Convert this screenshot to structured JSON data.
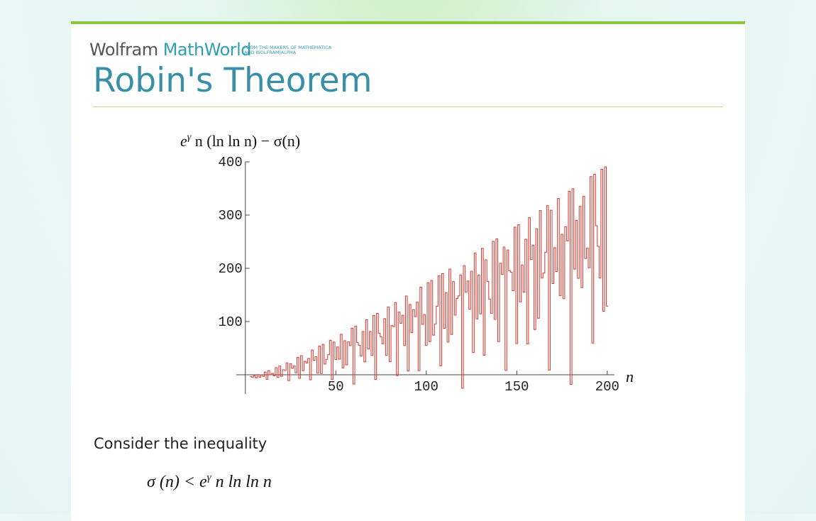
{
  "header": {
    "logo": {
      "wolfram": "Wolfram",
      "mathworld": "MathWorld"
    },
    "tagline": [
      "FROM THE MAKERS OF MATHEMATICA",
      "AND WOLFRAM|ALPHA"
    ],
    "title": "Robin's Theorem"
  },
  "chart_data": {
    "type": "line",
    "y_label": {
      "base": "e",
      "sup": "γ",
      "rest": " n (ln ln n) − σ(n)"
    },
    "x_label": "n",
    "x": [
      3,
      4,
      5,
      6,
      7,
      8,
      9,
      10,
      11,
      12,
      13,
      14,
      15,
      16,
      17,
      18,
      19,
      20,
      21,
      22,
      23,
      24,
      25,
      26,
      27,
      28,
      29,
      30,
      31,
      32,
      33,
      34,
      35,
      36,
      37,
      38,
      39,
      40,
      41,
      42,
      43,
      44,
      45,
      46,
      47,
      48,
      49,
      50,
      51,
      52,
      53,
      54,
      55,
      56,
      57,
      58,
      59,
      60,
      61,
      62,
      63,
      64,
      65,
      66,
      67,
      68,
      69,
      70,
      71,
      72,
      73,
      74,
      75,
      76,
      77,
      78,
      79,
      80,
      81,
      82,
      83,
      84,
      85,
      86,
      87,
      88,
      89,
      90,
      91,
      92,
      93,
      94,
      95,
      96,
      97,
      98,
      99,
      100,
      101,
      102,
      103,
      104,
      105,
      106,
      107,
      108,
      109,
      110,
      111,
      112,
      113,
      114,
      115,
      116,
      117,
      118,
      119,
      120,
      121,
      122,
      123,
      124,
      125,
      126,
      127,
      128,
      129,
      130,
      131,
      132,
      133,
      134,
      135,
      136,
      137,
      138,
      139,
      140,
      141,
      142,
      143,
      144,
      145,
      146,
      147,
      148,
      149,
      150,
      151,
      152,
      153,
      154,
      155,
      156,
      157,
      158,
      159,
      160,
      161,
      162,
      163,
      164,
      165,
      166,
      167,
      168,
      169,
      170,
      171,
      172,
      173,
      174,
      175,
      176,
      177,
      178,
      179,
      180,
      181,
      182,
      183,
      184,
      185,
      186,
      187,
      188,
      189,
      190,
      191,
      192,
      193,
      194,
      195,
      196,
      197,
      198,
      199,
      200
    ],
    "values": [
      -3.5,
      -4.7,
      -1.8,
      -5.8,
      0.3,
      -4.6,
      -0.4,
      -3.1,
      5.1,
      -8.5,
      7.8,
      0.2,
      2.6,
      -1.9,
      13.5,
      -5,
      16.5,
      -2.9,
      9.5,
      8,
      22.5,
      -10.9,
      20.7,
      12.3,
      17,
      3.8,
      32.6,
      -6.6,
      36,
      7.7,
      25.4,
      22.1,
      30.8,
      -9.4,
      46.4,
      27.2,
      34.1,
      3,
      53.7,
      2.5,
      57.3,
      20.1,
      29,
      37.8,
      64.7,
      -8.4,
      61.5,
      28.5,
      52.3,
      29.2,
      76.1,
      12.9,
      63.9,
      18.8,
      61.7,
      54.7,
      87.6,
      -17.4,
      91.5,
      60.5,
      55.4,
      35.4,
      81.3,
      24.3,
      103.3,
      48.3,
      81.3,
      36.4,
      111.3,
      -8.7,
      115.3,
      78.3,
      71.3,
      58.3,
      105.4,
      36.4,
      127.5,
      24.5,
      92.5,
      90.6,
      135.6,
      -1.4,
      117.7,
      96.7,
      111.8,
      54.9,
      148,
      7.1,
      132.1,
      79.2,
      122.3,
      109.3,
      136.4,
      7.5,
      164.6,
      94.7,
      112.9,
      55,
      173.1,
      62.2,
      177.3,
      74.4,
      95.5,
      128.7,
      185.8,
      16.9,
      190.1,
      87.2,
      154.3,
      61.5,
      198.6,
      75.7,
      174.9,
      112,
      143.2,
      148.3,
      187.5,
      -25.3,
      204.8,
      155,
      176.2,
      123.3,
      194.5,
      41.7,
      228.8,
      105,
      187.2,
      114.4,
      237.6,
      36.8,
      216,
      175.2,
      142.3,
      115.5,
      250.7,
      104,
      255.2,
      62.4,
      209.6,
      188.8,
      240,
      8.2,
      234.4,
      195.6,
      192.8,
      158.1,
      277.3,
      58.5,
      281.8,
      137,
      206.2,
      155.4,
      254.6,
      57.9,
      295.1,
      216.4,
      243.6,
      84.9,
      274.1,
      106.3,
      308.6,
      181.8,
      191.1,
      230.3,
      317.6,
      8.9,
      309.1,
      171.4,
      238.7,
      193.9,
      331.2,
      148.5,
      263.7,
      143,
      278.3,
      251.5,
      344.8,
      -17.9,
      349.4,
      198.6,
      289.9,
      181.2,
      316.5,
      163.8,
      335.1,
      218.4,
      237.7,
      201,
      372.3,
      59.5,
      376.8,
      280.1,
      241.4,
      181.7,
      386,
      119.3,
      390.6,
      128.9
    ],
    "color": "#d9443a",
    "xlim": [
      -5,
      204
    ],
    "ylim": [
      -36,
      400
    ],
    "xticks": [
      50,
      100,
      150,
      200
    ],
    "yticks": [
      100,
      200,
      300,
      400
    ]
  },
  "body": {
    "paragraph": "Consider the inequality",
    "formula": {
      "lhs": "σ (n) < e",
      "sup": "γ",
      "rhs": " n ln ln n"
    }
  }
}
